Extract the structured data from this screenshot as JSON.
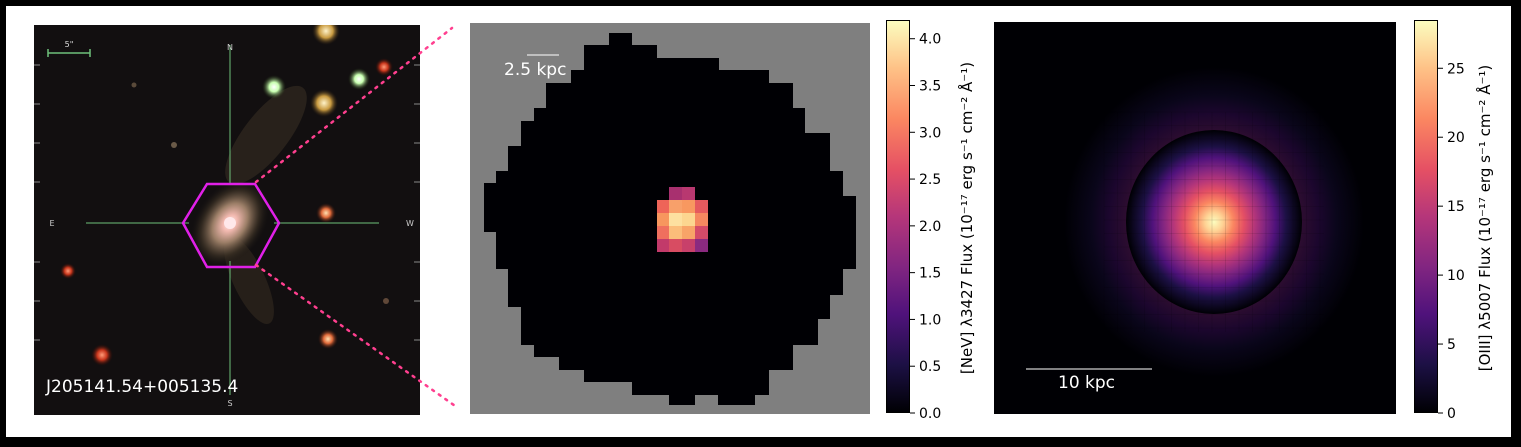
{
  "sdss_panel": {
    "object_name": "J205141.54+005135.4",
    "scale_label": "5\"",
    "compass": {
      "north": "N",
      "south": "S",
      "east": "E",
      "west": "W"
    },
    "colors": {
      "hexagon": "#e020e8",
      "crosshair": "#6ec07a",
      "zoom_lines": "#ff3f8f"
    }
  },
  "nev_map": {
    "scale_label": "2.5 kpc",
    "colorbar": {
      "label": "[NeV] λ3427 Flux (10⁻¹⁷ erg s⁻¹ cm⁻² Å⁻¹)",
      "ticks": [
        "0.0",
        "0.5",
        "1.0",
        "1.5",
        "2.0",
        "2.5",
        "3.0",
        "3.5",
        "4.0"
      ],
      "min": 0.0,
      "max": 4.2,
      "colormap": "magma"
    }
  },
  "oiii_map": {
    "scale_label": "10 kpc",
    "colorbar": {
      "label": "[OIII] λ5007 Flux (10⁻¹⁷ erg s⁻¹ cm⁻² Å⁻¹)",
      "ticks": [
        "0",
        "5",
        "10",
        "15",
        "20",
        "25"
      ],
      "min": 0,
      "max": 28.5,
      "colormap": "magma"
    }
  }
}
